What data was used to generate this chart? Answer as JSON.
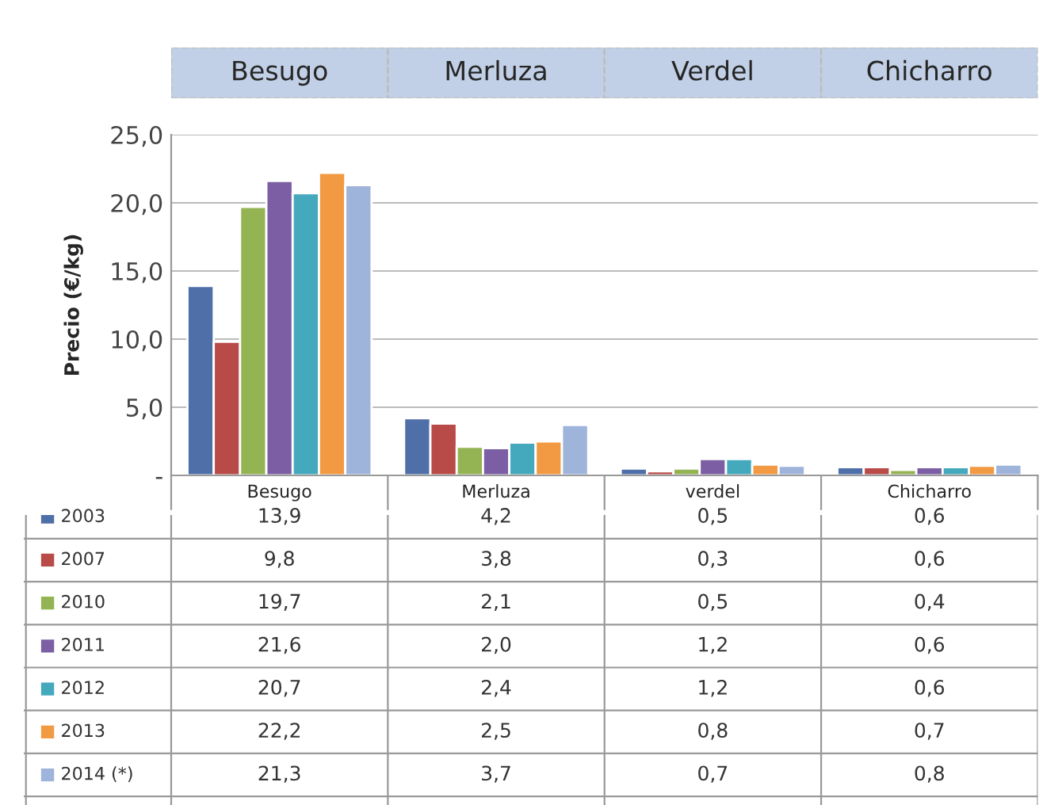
{
  "chart_data": {
    "type": "bar",
    "annotations": [
      "Besugo",
      "Merluza",
      "Verdel",
      "Chicharro"
    ],
    "ylabel": "Precio (€/kg)",
    "categories": [
      "Besugo",
      "Merluza",
      "verdel",
      "Chicharro"
    ],
    "series": [
      {
        "name": "2003",
        "color": "#4f6fa8",
        "values": [
          13.9,
          4.2,
          0.5,
          0.6
        ],
        "value_labels": [
          "13,9",
          "4,2",
          "0,5",
          "0,6"
        ]
      },
      {
        "name": "2007",
        "color": "#b84a47",
        "values": [
          9.8,
          3.8,
          0.3,
          0.6
        ],
        "value_labels": [
          "9,8",
          "3,8",
          "0,3",
          "0,6"
        ]
      },
      {
        "name": "2010",
        "color": "#94b454",
        "values": [
          19.7,
          2.1,
          0.5,
          0.4
        ],
        "value_labels": [
          "19,7",
          "2,1",
          "0,5",
          "0,4"
        ]
      },
      {
        "name": "2011",
        "color": "#7b5ea3",
        "values": [
          21.6,
          2.0,
          1.2,
          0.6
        ],
        "value_labels": [
          "21,6",
          "2,0",
          "1,2",
          "0,6"
        ]
      },
      {
        "name": "2012",
        "color": "#45a9be",
        "values": [
          20.7,
          2.4,
          1.2,
          0.6
        ],
        "value_labels": [
          "20,7",
          "2,4",
          "1,2",
          "0,6"
        ]
      },
      {
        "name": "2013",
        "color": "#f29a43",
        "values": [
          22.2,
          2.5,
          0.8,
          0.7
        ],
        "value_labels": [
          "22,2",
          "2,5",
          "0,8",
          "0,7"
        ]
      },
      {
        "name": "2014 (*)",
        "color": "#9fb4db",
        "values": [
          21.3,
          3.7,
          0.7,
          0.8
        ],
        "value_labels": [
          "21,3",
          "3,7",
          "0,7",
          "0,8"
        ]
      }
    ],
    "ylim": [
      0,
      25
    ],
    "yticks": [
      {
        "value": 0,
        "label": "-"
      },
      {
        "value": 5,
        "label": "5,0"
      },
      {
        "value": 10,
        "label": "10,0"
      },
      {
        "value": 15,
        "label": "15,0"
      },
      {
        "value": 20,
        "label": "20,0"
      },
      {
        "value": 25,
        "label": "25,0"
      }
    ],
    "grid": "y",
    "legend": "bottom"
  }
}
